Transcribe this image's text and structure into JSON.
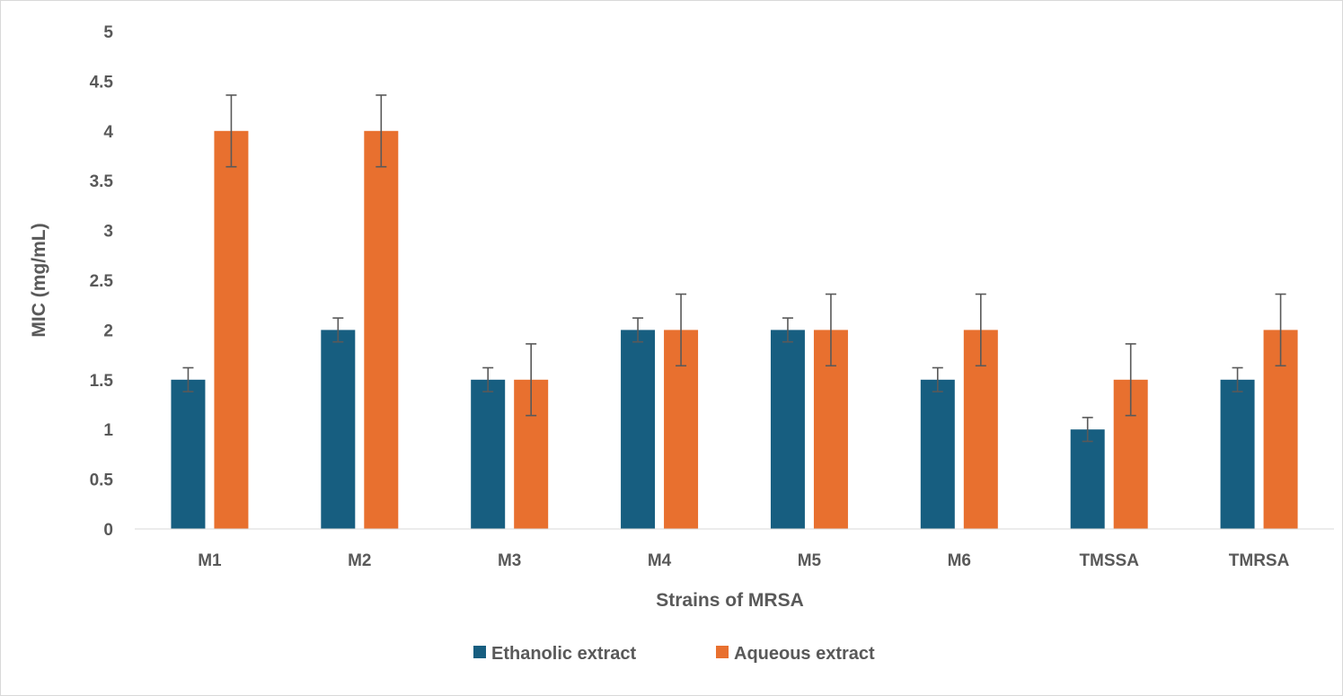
{
  "chart_data": {
    "type": "bar",
    "categories": [
      "M1",
      "M2",
      "M3",
      "M4",
      "M5",
      "M6",
      "TMSSA",
      "TMRSA"
    ],
    "series": [
      {
        "name": "Ethanolic extract",
        "color": "#175E80",
        "values": [
          1.5,
          2,
          1.5,
          2,
          2,
          1.5,
          1,
          1.5
        ],
        "error": [
          0.12,
          0.12,
          0.12,
          0.12,
          0.12,
          0.12,
          0.12,
          0.12
        ]
      },
      {
        "name": "Aqueous extract",
        "color": "#E8702F",
        "values": [
          4,
          4,
          1.5,
          2,
          2,
          2,
          1.5,
          2
        ],
        "error": [
          0.36,
          0.36,
          0.36,
          0.36,
          0.36,
          0.36,
          0.36,
          0.36
        ]
      }
    ],
    "xlabel": "Strains of MRSA",
    "ylabel": "MIC (mg/mL)",
    "ylim": [
      0,
      5
    ],
    "yticks": [
      "0",
      "0.5",
      "1",
      "1.5",
      "2",
      "2.5",
      "3",
      "3.5",
      "4",
      "4.5",
      "5"
    ],
    "grid": false,
    "legend_position": "bottom",
    "error_bars": true
  }
}
